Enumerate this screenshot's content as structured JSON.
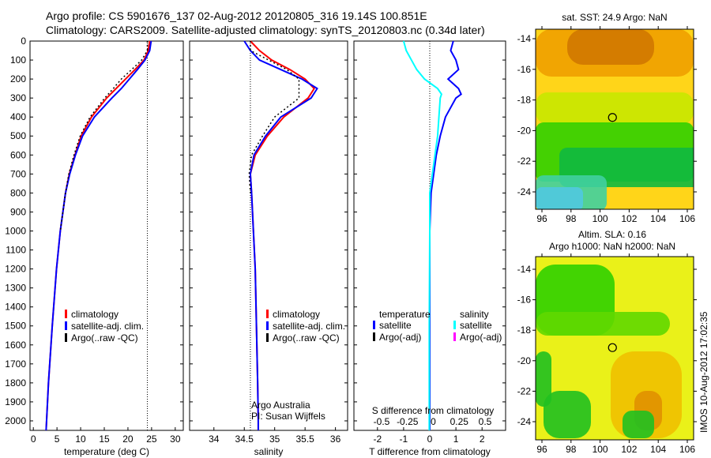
{
  "title": {
    "line1": "Argo profile: CS 5901676_137 02-Aug-2012 20120805_316 19.14S 100.851E",
    "line2": "Climatology: CARS2009. Satellite-adjusted climatology: synTS_20120803.nc (0.34d later)"
  },
  "colors": {
    "climatology": "#ff0000",
    "satellite": "#0000ff",
    "argo": "#000000",
    "s_satellite": "#00ffff",
    "s_argo": "#ff00ff"
  },
  "chart_data": [
    {
      "type": "line",
      "name": "temperature",
      "xlabel": "temperature (deg C)",
      "xlim": [
        -0.7,
        31.7
      ],
      "ylim": [
        2050,
        0
      ],
      "xticks": [
        0,
        5,
        10,
        15,
        20,
        25,
        30
      ],
      "yticks": [
        0,
        100,
        200,
        300,
        400,
        500,
        600,
        700,
        800,
        900,
        1000,
        1100,
        1200,
        1300,
        1400,
        1500,
        1600,
        1700,
        1800,
        1900,
        2000
      ],
      "depth": [
        0,
        50,
        100,
        150,
        200,
        250,
        300,
        400,
        500,
        600,
        700,
        800,
        1000,
        1200,
        1500,
        1800,
        2000,
        2050
      ],
      "series": [
        {
          "name": "climatology",
          "values": [
            24.6,
            24.3,
            23.4,
            21.5,
            19.5,
            17.5,
            15.5,
            12.3,
            10.1,
            8.8,
            7.6,
            6.8,
            5.7,
            4.9,
            4.0,
            3.2,
            2.8,
            2.7
          ]
        },
        {
          "name": "satellite-adj. clim.",
          "values": [
            24.9,
            24.6,
            23.6,
            22.0,
            20.3,
            18.6,
            16.6,
            12.9,
            10.4,
            8.9,
            7.7,
            6.8,
            5.7,
            4.9,
            4.0,
            3.2,
            2.8,
            2.7
          ]
        },
        {
          "name": "Argo(..raw -QC)",
          "values": [
            24.1,
            24.1,
            22.9,
            20.8,
            18.6,
            16.9,
            15.1,
            12.0,
            9.9,
            8.6,
            7.5,
            6.8,
            5.7,
            null,
            null,
            null,
            null,
            null
          ]
        }
      ],
      "vline": 24.1,
      "legend": [
        "climatology",
        "satellite-adj. clim.",
        "Argo(..raw -QC)"
      ]
    },
    {
      "type": "line",
      "name": "salinity",
      "xlabel": "salinity",
      "xlim": [
        33.6,
        36.2
      ],
      "ylim": [
        2050,
        0
      ],
      "xticks": [
        34,
        34.5,
        35,
        35.5,
        36
      ],
      "depth": [
        0,
        50,
        100,
        150,
        200,
        250,
        300,
        400,
        500,
        600,
        700,
        800,
        1000,
        1200,
        1500,
        1800,
        2000,
        2050
      ],
      "series": [
        {
          "name": "climatology",
          "values": [
            34.6,
            34.75,
            34.95,
            35.25,
            35.5,
            35.65,
            35.55,
            35.15,
            34.88,
            34.68,
            34.6,
            34.62,
            34.65,
            34.68,
            34.7,
            34.72,
            34.73,
            34.73
          ]
        },
        {
          "name": "satellite-adj. clim.",
          "values": [
            34.5,
            34.6,
            34.75,
            35.1,
            35.45,
            35.7,
            35.6,
            35.1,
            34.85,
            34.66,
            34.6,
            34.62,
            34.65,
            34.68,
            34.7,
            34.72,
            34.73,
            34.73
          ]
        },
        {
          "name": "Argo(..raw -QC)",
          "values": [
            34.6,
            34.6,
            34.9,
            35.2,
            35.4,
            35.4,
            35.4,
            35.0,
            34.8,
            34.62,
            34.58,
            34.6,
            null,
            null,
            null,
            null,
            null,
            null
          ]
        }
      ],
      "vline": 34.6,
      "legend": [
        "climatology",
        "satellite-adj. clim.",
        "Argo(..raw -QC)"
      ],
      "annotation": [
        "Argo Australia",
        "PI: Susan Wijffels"
      ]
    },
    {
      "type": "line",
      "name": "difference",
      "xlabel": "T difference from climatology",
      "x2label": "S difference from climatology",
      "xlim": [
        -2.9,
        2.9
      ],
      "ylim": [
        2050,
        0
      ],
      "xticks": [
        -2,
        -1,
        0,
        1,
        2
      ],
      "x2ticks": [
        "-0.5",
        "-0.25",
        "0",
        "0.25",
        "0.5"
      ],
      "depth": [
        0,
        50,
        100,
        150,
        200,
        250,
        280,
        300,
        400,
        500,
        600,
        700,
        800,
        1000,
        1500,
        2000,
        2050
      ],
      "series": [
        {
          "name": "T satellite",
          "values": [
            0.9,
            0.8,
            1.0,
            1.1,
            0.7,
            1.1,
            1.2,
            1.0,
            0.6,
            0.4,
            0.25,
            0.15,
            0.05,
            0.0,
            0.0,
            0.0,
            0.0
          ]
        },
        {
          "name": "S satellite",
          "values": [
            -1.0,
            -0.9,
            -0.7,
            -0.5,
            -0.2,
            0.3,
            0.45,
            0.4,
            0.35,
            0.3,
            0.2,
            0.1,
            0.0,
            0.0,
            -0.02,
            -0.02,
            -0.02
          ]
        }
      ],
      "vline": 0,
      "legend_t": [
        "temperature",
        "satellite",
        "Argo(-adj)"
      ],
      "legend_s": [
        "salinity",
        "satellite",
        "Argo(-adj)"
      ]
    },
    {
      "type": "heatmap",
      "name": "sst-map",
      "title": "sat. SST: 24.9 Argo: NaN",
      "xticks": [
        96,
        98,
        100,
        102,
        104,
        106
      ],
      "yticks": [
        -14,
        -16,
        -18,
        -20,
        -22,
        -24
      ],
      "marker": {
        "lon": 100.851,
        "lat": -19.14
      }
    },
    {
      "type": "heatmap",
      "name": "sla-map",
      "title": [
        "Altim. SLA: 0.16",
        "Argo h1000: NaN h2000: NaN"
      ],
      "xticks": [
        96,
        98,
        100,
        102,
        104,
        106
      ],
      "yticks": [
        -14,
        -16,
        -18,
        -20,
        -22,
        -24
      ],
      "marker": {
        "lon": 100.851,
        "lat": -19.14
      }
    }
  ],
  "footer": "IMOS 10-Aug-2012 17:02:35"
}
